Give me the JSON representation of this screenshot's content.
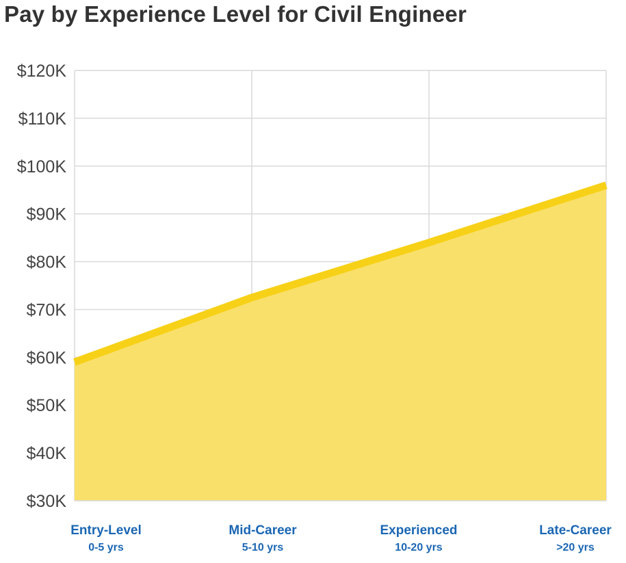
{
  "chart_data": {
    "type": "area",
    "title": "Pay by Experience Level for Civil Engineer",
    "categories": [
      {
        "label": "Entry-Level",
        "sublabel": "0-5 yrs"
      },
      {
        "label": "Mid-Career",
        "sublabel": "5-10 yrs"
      },
      {
        "label": "Experienced",
        "sublabel": "10-20 yrs"
      },
      {
        "label": "Late-Career",
        "sublabel": ">20 yrs"
      }
    ],
    "values": [
      59000,
      72500,
      84000,
      96000
    ],
    "ylim": [
      30000,
      120000
    ],
    "yticks": [
      {
        "value": 30000,
        "label": "$30K"
      },
      {
        "value": 40000,
        "label": "$40K"
      },
      {
        "value": 50000,
        "label": "$50K"
      },
      {
        "value": 60000,
        "label": "$60K"
      },
      {
        "value": 70000,
        "label": "$70K"
      },
      {
        "value": 80000,
        "label": "$80K"
      },
      {
        "value": 90000,
        "label": "$90K"
      },
      {
        "value": 100000,
        "label": "$100K"
      },
      {
        "value": 110000,
        "label": "$110K"
      },
      {
        "value": 120000,
        "label": "$120K"
      }
    ],
    "grid": true,
    "colors": {
      "line": "#f7d117",
      "fill": "#f9e06b",
      "grid": "#d9d9d9",
      "axis_label": "#1a66b3",
      "tick_label": "#444444"
    }
  }
}
